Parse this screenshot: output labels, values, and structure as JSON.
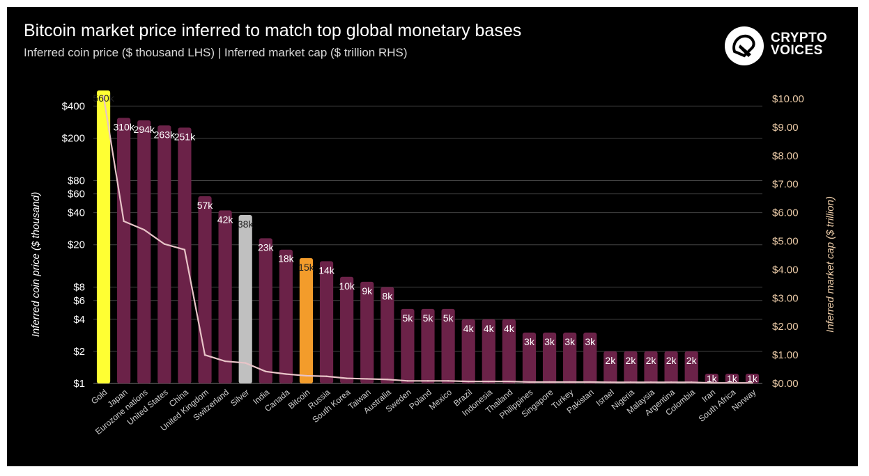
{
  "header": {
    "title": "Bitcoin market price inferred to match top global monetary bases",
    "subtitle": "Inferred coin price ($ thousand LHS) | Inferred market cap ($ trillion RHS)"
  },
  "logo": {
    "line1": "CRYPTO",
    "line2": "VOICES"
  },
  "colors": {
    "background": "#000000",
    "bar_default": "#6b2248",
    "bar_gold": "#ffff33",
    "bar_silver": "#c0c0c0",
    "bar_bitcoin": "#f39c2b",
    "line": "#e8c4c8",
    "left_axis_text": "#ffffff",
    "right_axis_text": "#e9c9a6",
    "gridline": "#444444"
  },
  "chart_data": {
    "type": "bar",
    "title": "Bitcoin market price inferred to match top global monetary bases",
    "subtitle": "Inferred coin price ($ thousand LHS) | Inferred market cap ($ trillion RHS)",
    "ylabel": "Inferred coin price ($ thousand)",
    "y2label": "Inferred market cap ($ trillion)",
    "yscale": "log",
    "ylim": [
      1,
      560
    ],
    "y_ticks": [
      "$1",
      "$2",
      "$4",
      "$6",
      "$8",
      "$20",
      "$40",
      "$60",
      "$80",
      "$200",
      "$400"
    ],
    "y_tick_values": [
      1,
      2,
      4,
      6,
      8,
      20,
      40,
      60,
      80,
      200,
      400
    ],
    "y2lim": [
      0,
      10
    ],
    "y2_ticks": [
      "$0.00",
      "$1.00",
      "$2.00",
      "$3.00",
      "$4.00",
      "$5.00",
      "$6.00",
      "$7.00",
      "$8.00",
      "$9.00",
      "$10.00"
    ],
    "y2_tick_values": [
      0,
      1,
      2,
      3,
      4,
      5,
      6,
      7,
      8,
      9,
      10
    ],
    "grid": true,
    "categories": [
      "Gold",
      "Japan",
      "Eurozone nations",
      "United States",
      "China",
      "United Kingdom",
      "Switzerland",
      "Silver",
      "India",
      "Canada",
      "Bitcoin",
      "Russia",
      "South Korea",
      "Taiwan",
      "Australia",
      "Sweden",
      "Poland",
      "Mexico",
      "Brazil",
      "Indonesia",
      "Thailand",
      "Philippines",
      "Singapore",
      "Turkey",
      "Pakistan",
      "Israel",
      "Nigeria",
      "Malaysia",
      "Argentina",
      "Colombia",
      "Iran",
      "South Africa",
      "Norway"
    ],
    "series": [
      {
        "kind": "bar",
        "axis": "left",
        "values": [
          560,
          310,
          294,
          263,
          251,
          57,
          42,
          38,
          23,
          18,
          15,
          14,
          10,
          9,
          8,
          5,
          5,
          5,
          4,
          4,
          4,
          3,
          3,
          3,
          3,
          2,
          2,
          2,
          2,
          2,
          1,
          1,
          1
        ],
        "data_labels": [
          "560k",
          "310k",
          "294k",
          "263k",
          "251k",
          "57k",
          "42k",
          "38k",
          "23k",
          "18k",
          "15k",
          "14k",
          "10k",
          "9k",
          "8k",
          "5k",
          "5k",
          "5k",
          "4k",
          "4k",
          "4k",
          "3k",
          "3k",
          "3k",
          "3k",
          "2k",
          "2k",
          "2k",
          "2k",
          "2k",
          "1k",
          "1k",
          "1k"
        ]
      },
      {
        "kind": "line",
        "axis": "right",
        "values": [
          10.1,
          5.7,
          5.4,
          4.9,
          4.7,
          1.0,
          0.78,
          0.72,
          0.42,
          0.33,
          0.27,
          0.25,
          0.18,
          0.16,
          0.14,
          0.09,
          0.09,
          0.09,
          0.07,
          0.07,
          0.07,
          0.05,
          0.05,
          0.05,
          0.05,
          0.04,
          0.04,
          0.04,
          0.04,
          0.04,
          0.02,
          0.02,
          0.02
        ]
      }
    ]
  }
}
